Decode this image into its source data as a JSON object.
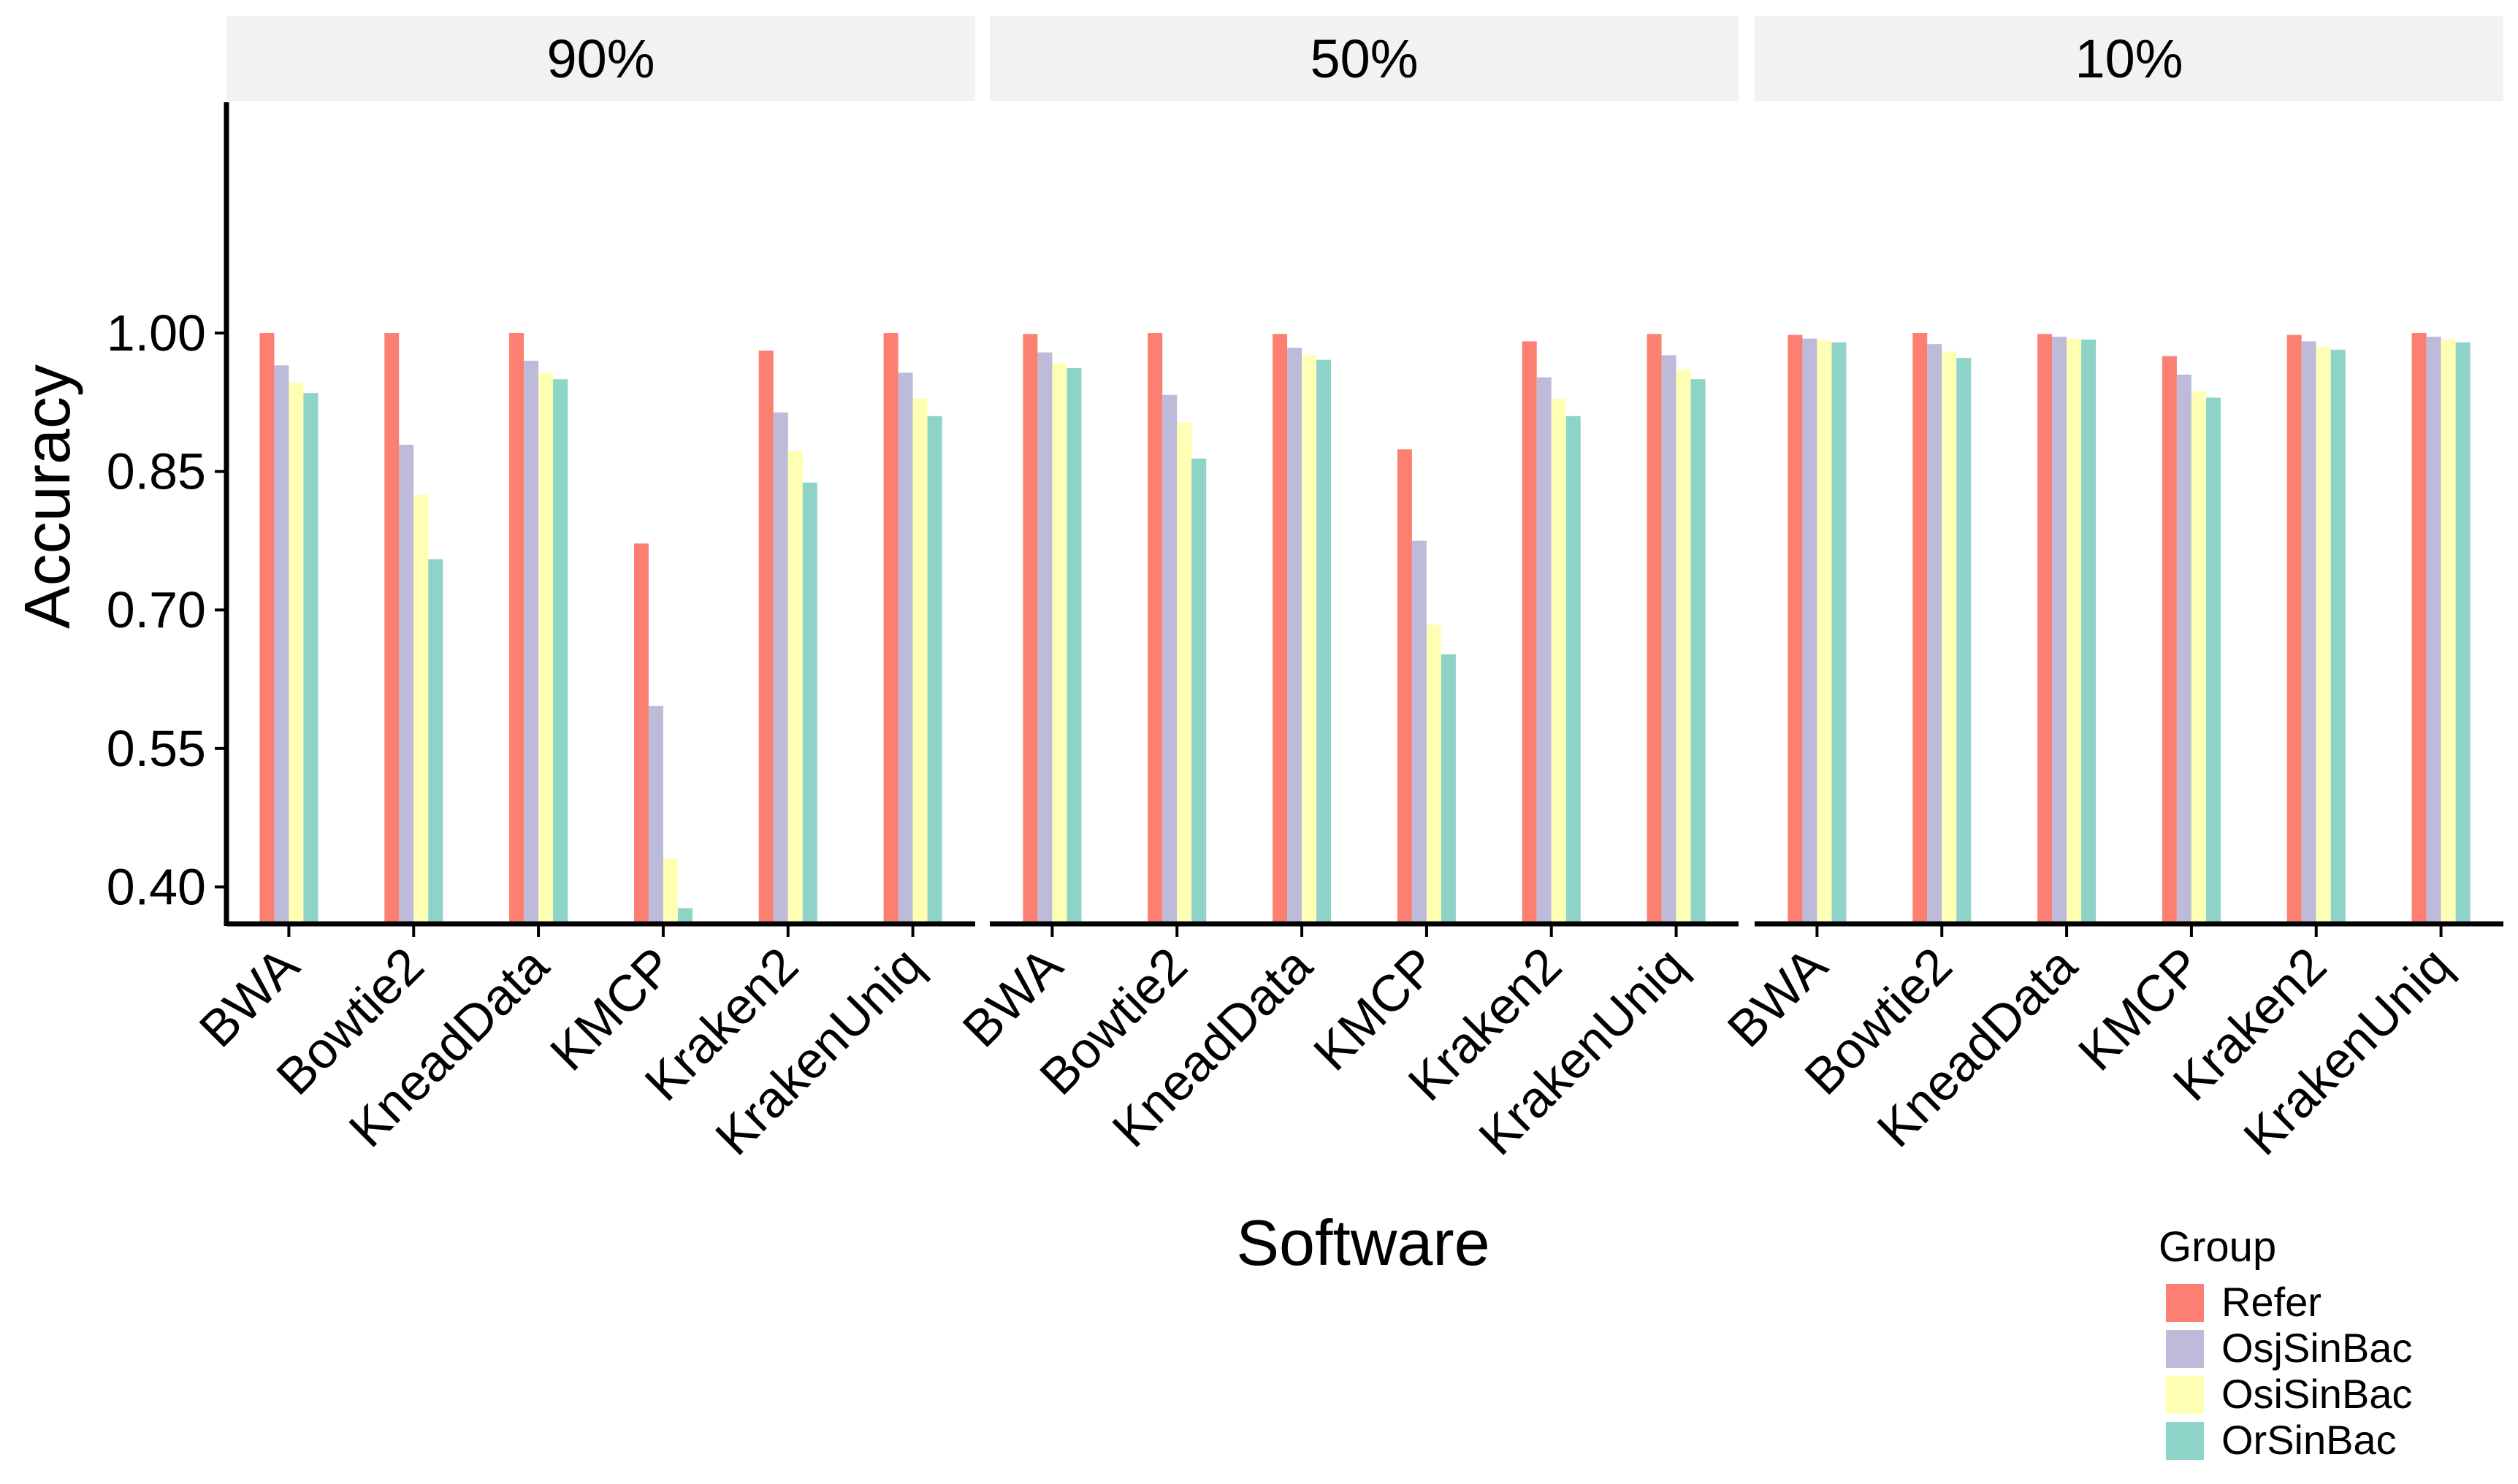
{
  "chart_data": {
    "type": "bar",
    "xlabel": "Software",
    "ylabel": "Accuracy",
    "ylim": [
      0.36,
      1.25
    ],
    "y_ticks": [
      "0.40",
      "0.55",
      "0.70",
      "0.85",
      "1.00"
    ],
    "y_tick_values": [
      0.4,
      0.55,
      0.7,
      0.85,
      1.0
    ],
    "grid": false,
    "legend_position": "bottom-right",
    "legend_title": "Group",
    "categories": [
      "BWA",
      "Bowtie2",
      "KneadData",
      "KMCP",
      "Kraken2",
      "KrakenUniq"
    ],
    "series_names": [
      "Refer",
      "OsjSinBac",
      "OsiSinBac",
      "OrSinBac"
    ],
    "colors": [
      "#FB8072",
      "#BEBADA",
      "#FFFFB3",
      "#8DD3C7"
    ],
    "strip_background": "#f2f2f2",
    "panels": [
      {
        "label": "90%",
        "series": [
          {
            "name": "Refer",
            "values": [
              1.0,
              1.0,
              1.0,
              0.772,
              0.981,
              1.0
            ]
          },
          {
            "name": "OsjSinBac",
            "values": [
              0.965,
              0.879,
              0.97,
              0.596,
              0.914,
              0.957
            ]
          },
          {
            "name": "OsiSinBac",
            "values": [
              0.946,
              0.825,
              0.957,
              0.431,
              0.872,
              0.929
            ]
          },
          {
            "name": "OrSinBac",
            "values": [
              0.935,
              0.755,
              0.95,
              0.377,
              0.838,
              0.91
            ]
          }
        ]
      },
      {
        "label": "50%",
        "series": [
          {
            "name": "Refer",
            "values": [
              0.999,
              1.0,
              0.999,
              0.874,
              0.991,
              0.999
            ]
          },
          {
            "name": "OsjSinBac",
            "values": [
              0.979,
              0.933,
              0.984,
              0.775,
              0.952,
              0.976
            ]
          },
          {
            "name": "OsiSinBac",
            "values": [
              0.967,
              0.903,
              0.976,
              0.684,
              0.929,
              0.96
            ]
          },
          {
            "name": "OrSinBac",
            "values": [
              0.962,
              0.864,
              0.971,
              0.652,
              0.91,
              0.95
            ]
          }
        ]
      },
      {
        "label": "10%",
        "series": [
          {
            "name": "Refer",
            "values": [
              0.998,
              1.0,
              0.999,
              0.975,
              0.998,
              1.0
            ]
          },
          {
            "name": "OsjSinBac",
            "values": [
              0.994,
              0.988,
              0.996,
              0.955,
              0.991,
              0.996
            ]
          },
          {
            "name": "OsiSinBac",
            "values": [
              0.992,
              0.98,
              0.994,
              0.937,
              0.985,
              0.993
            ]
          },
          {
            "name": "OrSinBac",
            "values": [
              0.99,
              0.973,
              0.993,
              0.93,
              0.982,
              0.99
            ]
          }
        ]
      }
    ]
  }
}
